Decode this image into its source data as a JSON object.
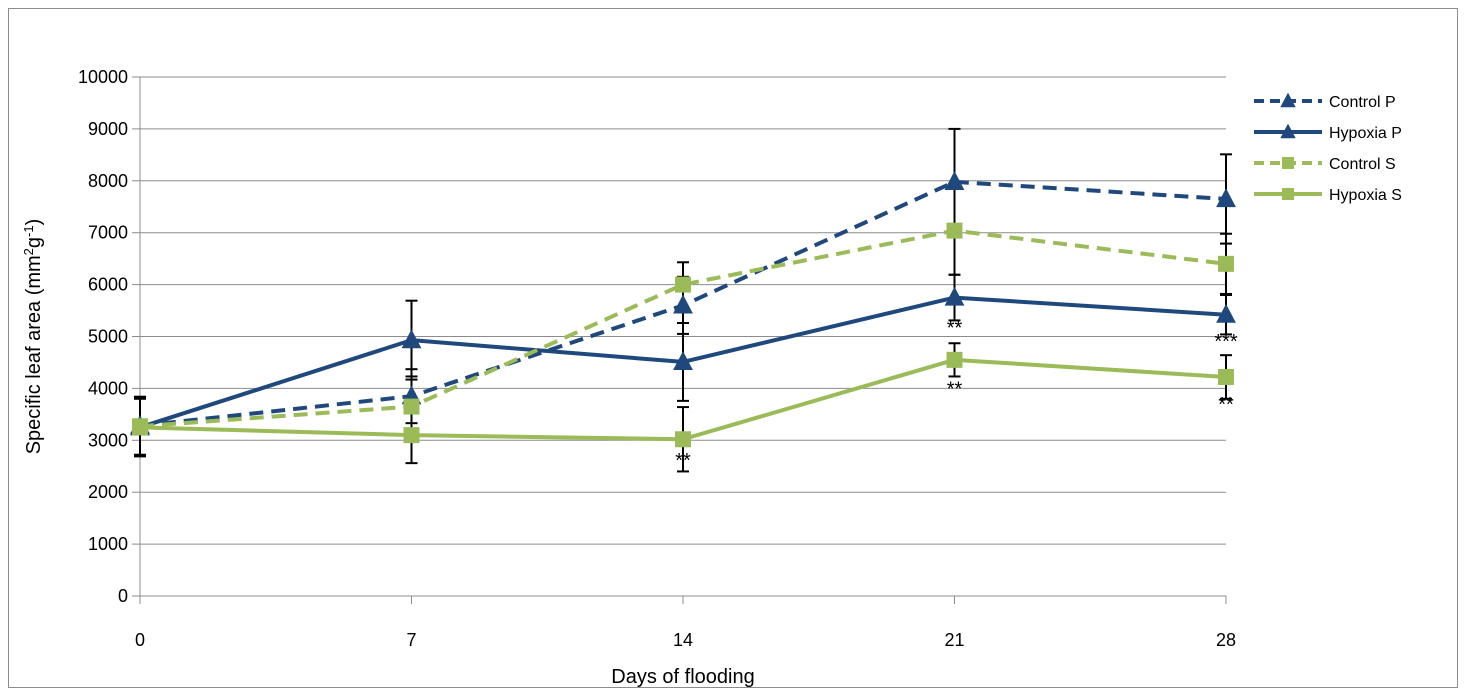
{
  "chart_data": {
    "type": "line",
    "xlabel": "Days of flooding",
    "ylabel_main": "Specific leaf area (mm",
    "ylabel_sup1": "2",
    "ylabel_mid": "g",
    "ylabel_sup2": "-1",
    "ylabel_end": ")",
    "x": [
      0,
      7,
      14,
      21,
      28
    ],
    "x_tick_labels": [
      "0",
      "7",
      "14",
      "21",
      "28"
    ],
    "ylim": [
      0,
      10000
    ],
    "y_ticks": [
      0,
      1000,
      2000,
      3000,
      4000,
      5000,
      6000,
      7000,
      8000,
      9000,
      10000
    ],
    "grid": true,
    "legend_position": "right",
    "series": [
      {
        "name": "Control P",
        "color": "#1F497D",
        "dash": true,
        "marker": "triangle",
        "values": [
          3280,
          3850,
          5600,
          7980,
          7650
        ],
        "errors": [
          560,
          520,
          550,
          1020,
          860
        ]
      },
      {
        "name": "Hypoxia P",
        "color": "#1F497D",
        "dash": false,
        "marker": "triangle",
        "values": [
          3250,
          4930,
          4510,
          5750,
          5420
        ],
        "errors": [
          560,
          760,
          750,
          440,
          380
        ]
      },
      {
        "name": "Control S",
        "color": "#9BBB59",
        "dash": true,
        "marker": "square",
        "values": [
          3270,
          3650,
          6000,
          7040,
          6400
        ],
        "errors": [
          550,
          580,
          430,
          850,
          580
        ]
      },
      {
        "name": "Hypoxia S",
        "color": "#9BBB59",
        "dash": false,
        "marker": "square",
        "values": [
          3250,
          3100,
          3020,
          4550,
          4220
        ],
        "errors": [
          550,
          540,
          620,
          320,
          420
        ]
      }
    ],
    "annotations": [
      {
        "x": 14,
        "y": 2620,
        "text": "**"
      },
      {
        "x": 21,
        "y": 5170,
        "text": "**"
      },
      {
        "x": 21,
        "y": 4000,
        "text": "**"
      },
      {
        "x": 28,
        "y": 4910,
        "text": "***"
      },
      {
        "x": 28,
        "y": 3700,
        "text": "**"
      }
    ]
  }
}
